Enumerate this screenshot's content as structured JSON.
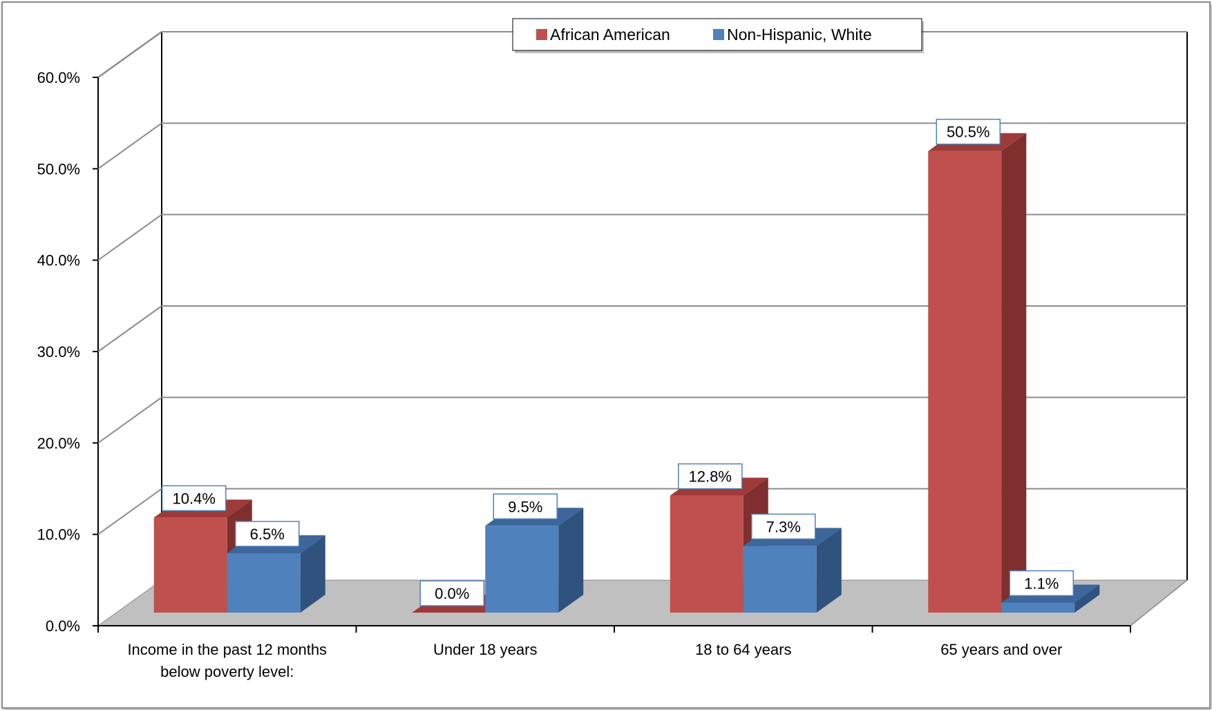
{
  "chart_data": {
    "type": "bar",
    "categories": [
      [
        "Income in the past 12 months",
        "below poverty level:"
      ],
      [
        "Under 18 years"
      ],
      [
        "18 to 64 years"
      ],
      [
        "65 years and over"
      ]
    ],
    "series": [
      {
        "name": "African American",
        "values": [
          10.4,
          0.0,
          12.8,
          50.5
        ],
        "labels": [
          "10.4%",
          "0.0%",
          "12.8%",
          "50.5%"
        ],
        "color": "#c0504d",
        "side_color": "#7f2f2e",
        "top_color": "#9e3a38"
      },
      {
        "name": "Non-Hispanic, White",
        "values": [
          6.5,
          9.5,
          7.3,
          1.1
        ],
        "labels": [
          "6.5%",
          "9.5%",
          "7.3%",
          "1.1%"
        ],
        "color": "#4f81bd",
        "side_color": "#2f527e",
        "top_color": "#3d669a"
      }
    ],
    "y_ticks": [
      "0.0%",
      "10.0%",
      "20.0%",
      "30.0%",
      "40.0%",
      "50.0%",
      "60.0%"
    ],
    "ylim": [
      0,
      60
    ],
    "legend_position": "top-center",
    "grid": true,
    "style": "3d-clustered-column"
  }
}
